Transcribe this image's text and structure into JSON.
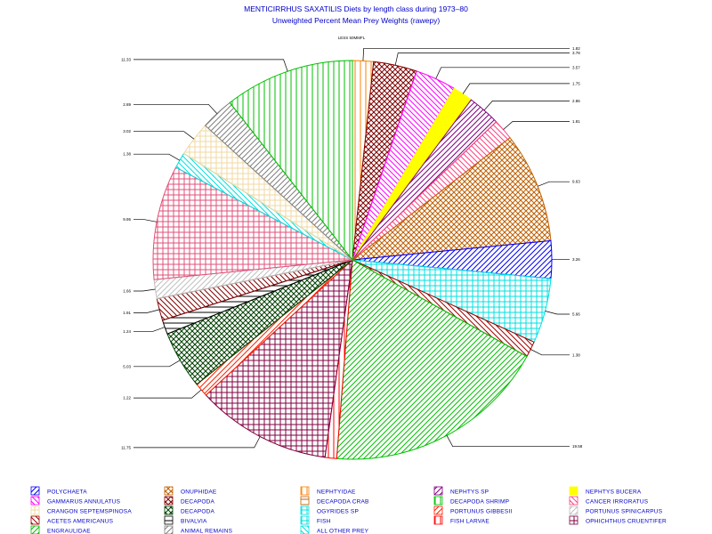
{
  "chart_data": {
    "type": "pie",
    "title": "MENTICIRRHUS SAXATILIS Diets by length class during 1973–80",
    "subtitle": "Unweighted Percent Mean Prey Weights (rawepy)",
    "top_note": "LESS 50MMFL",
    "slices": [
      {
        "name": "NEPHTYIDAE",
        "value": 1.82,
        "label": "1.82",
        "color": "#ff8000",
        "pattern": "vlines"
      },
      {
        "name": "DECAPODA",
        "value": 3.78,
        "label": "3.78",
        "color": "#800000",
        "pattern": "crosshatch"
      },
      {
        "name": "GAMMARUS ANNULATUS",
        "value": 3.57,
        "label": "3.57",
        "color": "#ff00ff",
        "pattern": "rdiag"
      },
      {
        "name": "NEPHTYS BUCERA",
        "value": 1.75,
        "label": "1.75",
        "color": "#ffff00",
        "pattern": "solid"
      },
      {
        "name": "NEPHTYS SP",
        "value": 2.86,
        "label": "2.86",
        "color": "#800080",
        "pattern": "ldiag"
      },
      {
        "name": "CANCER IRRORATUS",
        "value": 1.81,
        "label": "1.81",
        "color": "#ff4080",
        "pattern": "rdiag"
      },
      {
        "name": "ONUPHIDAE",
        "value": 9.63,
        "label": "9.63",
        "color": "#c06000",
        "pattern": "crosshatch"
      },
      {
        "name": "POLYCHAETA",
        "value": 3.26,
        "label": "3.26",
        "color": "#0000ff",
        "pattern": "ldiag"
      },
      {
        "name": "OGYRIDES SP",
        "value": 5.66,
        "label": "5.66",
        "color": "#00e0e0",
        "pattern": "grid"
      },
      {
        "name": "ACETES AMERICANUS",
        "value": 1.38,
        "label": "1.38",
        "color": "#a00000",
        "pattern": "rdiag"
      },
      {
        "name": "ENGRAULIDAE",
        "value": 19.58,
        "label": "19.58",
        "color": "#00c000",
        "pattern": "ldiag"
      },
      {
        "name": "FISH LARVAE",
        "value": 1.01,
        "label": "",
        "color": "#ff0000",
        "pattern": "vlines"
      },
      {
        "name": "OPHICHTHUS CRUENTIFER",
        "value": 11.75,
        "label": "11.75",
        "color": "#800040",
        "pattern": "grid"
      },
      {
        "name": "PORTUNUS GIBBESII",
        "value": 1.22,
        "label": "1.22",
        "color": "#ff2000",
        "pattern": "ldiag"
      },
      {
        "name": "DECAPODA (2)",
        "value": 5.03,
        "label": "5.03",
        "color": "#004000",
        "pattern": "crosshatch"
      },
      {
        "name": "BIVALVIA",
        "value": 1.24,
        "label": "1.24",
        "color": "#000000",
        "pattern": "hlines"
      },
      {
        "name": "ANIMAL REMAINS",
        "value": 1.91,
        "label": "1.91",
        "color": "#800000",
        "pattern": "rdiag"
      },
      {
        "name": "PORTUNUS SPINICARPUS",
        "value": 1.66,
        "label": "1.66",
        "color": "#c0c0c0",
        "pattern": "ldiag"
      },
      {
        "name": "PORTUNUS GIBBESII (2)",
        "value": 9.95,
        "label": "9.95",
        "color": "#e0507a",
        "pattern": "grid"
      },
      {
        "name": "ALL OTHER PREY",
        "value": 1.38,
        "label": "1.38",
        "color": "#00e0e0",
        "pattern": "rdiag"
      },
      {
        "name": "CRANGON SEPTEMSPINOSA",
        "value": 3.02,
        "label": "3.02",
        "color": "#f0d8a0",
        "pattern": "grid"
      },
      {
        "name": "ANIMAL REMAINS (2)",
        "value": 2.89,
        "label": "2.89",
        "color": "#808080",
        "pattern": "ldiag"
      },
      {
        "name": "DECAPODA SHRIMP",
        "value": 11.33,
        "label": "11.33",
        "color": "#00c000",
        "pattern": "vlines"
      }
    ],
    "legend_placement": "bottom",
    "legend": [
      {
        "label": "POLYCHAETA",
        "color": "#0000ff",
        "pattern": "ldiag"
      },
      {
        "label": "ONUPHIDAE",
        "color": "#c06000",
        "pattern": "crosshatch"
      },
      {
        "label": "NEPHTYIDAE",
        "color": "#ff8000",
        "pattern": "vlines"
      },
      {
        "label": "NEPHTYS SP",
        "color": "#800080",
        "pattern": "ldiag"
      },
      {
        "label": "NEPHTYS BUCERA",
        "color": "#ffff00",
        "pattern": "solid"
      },
      {
        "label": "GAMMARUS ANNULATUS",
        "color": "#ff00ff",
        "pattern": "rdiag"
      },
      {
        "label": "DECAPODA",
        "color": "#800000",
        "pattern": "crosshatch"
      },
      {
        "label": "DECAPODA CRAB",
        "color": "#c06000",
        "pattern": "hlines"
      },
      {
        "label": "DECAPODA SHRIMP",
        "color": "#00c000",
        "pattern": "vlines"
      },
      {
        "label": "CANCER IRRORATUS",
        "color": "#ff4080",
        "pattern": "rdiag"
      },
      {
        "label": "CRANGON SEPTEMSPINOSA",
        "color": "#f0d8a0",
        "pattern": "grid"
      },
      {
        "label": "DECAPODA",
        "color": "#004000",
        "pattern": "crosshatch"
      },
      {
        "label": "OGYRIDES SP",
        "color": "#00e0e0",
        "pattern": "grid"
      },
      {
        "label": "PORTUNUS GIBBESII",
        "color": "#ff2000",
        "pattern": "ldiag"
      },
      {
        "label": "PORTUNUS SPINICARPUS",
        "color": "#c0c0c0",
        "pattern": "ldiag"
      },
      {
        "label": "ACETES AMERICANUS",
        "color": "#a00000",
        "pattern": "rdiag"
      },
      {
        "label": "BIVALVIA",
        "color": "#000000",
        "pattern": "hlines"
      },
      {
        "label": "FISH",
        "color": "#00e0e0",
        "pattern": "grid"
      },
      {
        "label": "FISH LARVAE",
        "color": "#ff0000",
        "pattern": "vlines"
      },
      {
        "label": "OPHICHTHUS CRUENTIFER",
        "color": "#800040",
        "pattern": "grid"
      },
      {
        "label": "ENGRAULIDAE",
        "color": "#00c000",
        "pattern": "ldiag"
      },
      {
        "label": "ANIMAL REMAINS",
        "color": "#808080",
        "pattern": "ldiag"
      },
      {
        "label": "ALL OTHER PREY",
        "color": "#00e0e0",
        "pattern": "rdiag"
      }
    ]
  }
}
